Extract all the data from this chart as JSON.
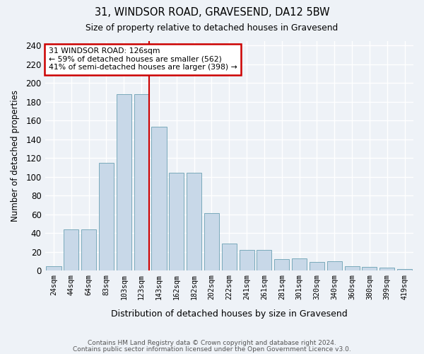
{
  "title1": "31, WINDSOR ROAD, GRAVESEND, DA12 5BW",
  "title2": "Size of property relative to detached houses in Gravesend",
  "xlabel": "Distribution of detached houses by size in Gravesend",
  "ylabel": "Number of detached properties",
  "bar_values": [
    5,
    44,
    44,
    115,
    188,
    188,
    153,
    104,
    104,
    61,
    29,
    22,
    22,
    12,
    13,
    9,
    10,
    5,
    4,
    3,
    2
  ],
  "categories": [
    "24sqm",
    "44sqm",
    "64sqm",
    "83sqm",
    "103sqm",
    "123sqm",
    "143sqm",
    "162sqm",
    "182sqm",
    "202sqm",
    "222sqm",
    "241sqm",
    "261sqm",
    "281sqm",
    "301sqm",
    "320sqm",
    "340sqm",
    "360sqm",
    "380sqm",
    "399sqm",
    "419sqm"
  ],
  "bar_color": "#c8d8e8",
  "bar_edge_color": "#7aaabb",
  "vline_index": 5,
  "vline_color": "#cc0000",
  "annotation_line1": "31 WINDSOR ROAD: 126sqm",
  "annotation_line2": "← 59% of detached houses are smaller (562)",
  "annotation_line3": "41% of semi-detached houses are larger (398) →",
  "annotation_box_edge_color": "#cc0000",
  "ylim": [
    0,
    245
  ],
  "yticks": [
    0,
    20,
    40,
    60,
    80,
    100,
    120,
    140,
    160,
    180,
    200,
    220,
    240
  ],
  "footer1": "Contains HM Land Registry data © Crown copyright and database right 2024.",
  "footer2": "Contains public sector information licensed under the Open Government Licence v3.0.",
  "bg_color": "#eef2f7",
  "grid_color": "#ffffff"
}
